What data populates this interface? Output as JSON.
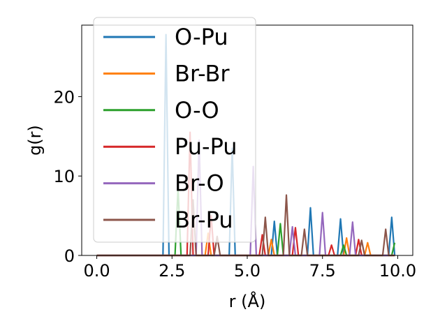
{
  "chart_data": {
    "type": "line",
    "xlabel": "r (Å)",
    "ylabel": "g(r)",
    "xlim": [
      -0.5,
      10.5
    ],
    "ylim": [
      0,
      29
    ],
    "xticks": [
      0.0,
      2.5,
      5.0,
      7.5,
      10.0
    ],
    "xtick_labels": [
      "0.0",
      "2.5",
      "5.0",
      "7.5",
      "10.0"
    ],
    "yticks": [
      0,
      10,
      20
    ],
    "ytick_labels": [
      "0",
      "10",
      "20"
    ],
    "grid": false,
    "legend_position": "top-left",
    "series": [
      {
        "name": "O-Pu",
        "color": "#1f77b4",
        "peaks": [
          [
            2.3,
            27.8
          ],
          [
            4.5,
            13.5
          ],
          [
            5.9,
            4.3
          ],
          [
            7.1,
            6.0
          ],
          [
            8.1,
            4.6
          ],
          [
            9.8,
            4.8
          ]
        ]
      },
      {
        "name": "Br-Br",
        "color": "#ff7f0e",
        "peaks": [
          [
            3.7,
            2.8
          ],
          [
            5.8,
            2.0
          ],
          [
            8.3,
            2.2
          ],
          [
            9.0,
            1.6
          ]
        ]
      },
      {
        "name": "O-O",
        "color": "#2ca02c",
        "peaks": [
          [
            2.7,
            8.5
          ],
          [
            6.1,
            4.0
          ],
          [
            8.2,
            1.3
          ],
          [
            9.9,
            1.6
          ]
        ]
      },
      {
        "name": "Pu-Pu",
        "color": "#d62728",
        "peaks": [
          [
            3.1,
            15.5
          ],
          [
            3.8,
            5.0
          ],
          [
            5.5,
            2.6
          ],
          [
            6.6,
            3.5
          ],
          [
            7.8,
            1.3
          ],
          [
            8.7,
            2.0
          ]
        ]
      },
      {
        "name": "Br-O",
        "color": "#9467bd",
        "peaks": [
          [
            3.4,
            14.5
          ],
          [
            5.2,
            11.2
          ],
          [
            6.5,
            3.6
          ],
          [
            7.5,
            5.4
          ],
          [
            8.5,
            4.2
          ]
        ]
      },
      {
        "name": "Br-Pu",
        "color": "#8c564b",
        "peaks": [
          [
            3.2,
            7.0
          ],
          [
            4.0,
            2.4
          ],
          [
            5.6,
            4.8
          ],
          [
            6.3,
            7.6
          ],
          [
            6.9,
            3.3
          ],
          [
            8.8,
            1.9
          ],
          [
            9.6,
            3.3
          ]
        ]
      }
    ]
  }
}
